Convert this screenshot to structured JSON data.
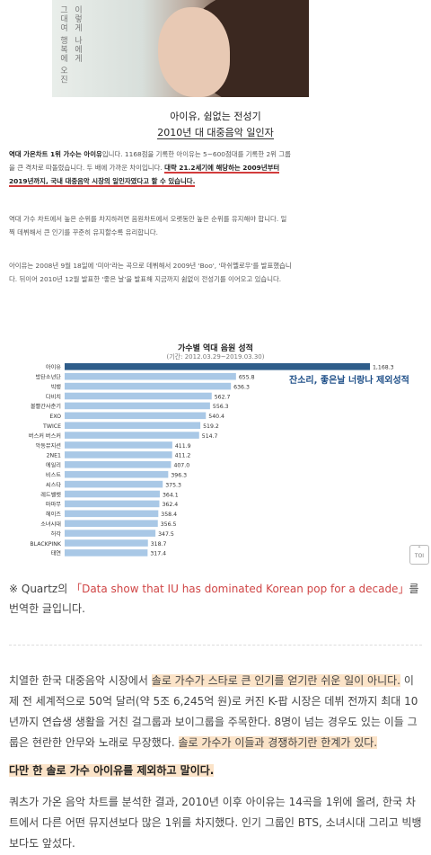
{
  "hero": {
    "vertical_text_1": "그대여 행복에 오진",
    "vertical_text_2": "이렇게 나에게"
  },
  "heading": {
    "line1": "아이유, 쉼없는 전성기",
    "line2": "2010년 대 대중음악 일인자"
  },
  "article1": {
    "p1_bold": "역대 가온차트 1위 가수는 아이유",
    "p1_rest": "입니다. 1168점을 기록한 아이유는 5~600점대를 기록한 2위 그룹을 큰 격차로 따돌렸습니다. 두 배에 가까운 차이입니다. ",
    "p1_hl": "대략 21.2세기에 해당하는 2009년부터 2019년까지, 국내 대중음악 시장의 일인자였다고 할 수 있습니다.",
    "p2": "역대 가수 차트에서 높은 순위를 차지하려면 음원차트에서 오랫동안 높은 순위를 유지해야 합니다. 일찍 데뷔해서 큰 인기를 꾸준히 유지할수록 유리합니다.",
    "p3": "아이유는 2008년 9월 18일에 '미아'라는 곡으로 데뷔해서 2009년 'Boo', '마쉬멜로우'를 발표했습니다. 뒤이어 2010년 12월 발표한 '좋은 날'을 발표해 지금까지 쉼없이 전성기를 이어오고 있습니다."
  },
  "chart_data": {
    "type": "bar",
    "orientation": "horizontal",
    "title": "가수별 역대 음원 성적",
    "subtitle": "(기간: 2012.03.29~2019.03.30)",
    "annotation": "잔소리, 좋은날 너랑나 제외성적",
    "xlim": [
      0,
      1168.3
    ],
    "colors": {
      "highlight": "#2f5d8a",
      "default": "#a9c8e6"
    },
    "categories": [
      "아이유",
      "방탄소년단",
      "빅뱅",
      "다비치",
      "볼빨간사춘기",
      "EXO",
      "TWICE",
      "버스커 버스커",
      "악동뮤지션",
      "2NE1",
      "에일리",
      "비스트",
      "씨스타",
      "레드벨벳",
      "마마무",
      "헤이즈",
      "소녀시대",
      "허각",
      "BLACKPINK",
      "태연"
    ],
    "values": [
      1168.3,
      655.8,
      636.3,
      562.7,
      556.3,
      540.4,
      519.2,
      514.7,
      411.9,
      411.2,
      407.0,
      396.3,
      375.3,
      364.1,
      362.4,
      358.4,
      356.5,
      347.5,
      318.7,
      317.4
    ],
    "value_labels": [
      "1,168.3",
      "655.8",
      "636.3",
      "562.7",
      "556.3",
      "540.4",
      "519.2",
      "514.7",
      "411.9",
      "411.2",
      "407.0",
      "396.3",
      "375.3",
      "364.1",
      "362.4",
      "358.4",
      "356.5",
      "347.5",
      "318.7",
      "317.4"
    ]
  },
  "toi_label": "TOI",
  "note": {
    "prefix": "※ Quartz의 ",
    "link": "「Data show that IU has dominated Korean pop for a decade」",
    "suffix": "를 번역한 글입니다."
  },
  "article2": {
    "p1_a": "치열한 한국 대중음악 시장에서 ",
    "p1_mark1": "솔로 가수가 스타로 큰 인기를 얻기란 쉬운 일이 아니다.",
    "p1_b": " 이제 전 세계적으로 50억 달러(약 5조 6,245억 원)로 커진 K-팝 시장은 데뷔 전까지 최대 10년까지 연습생 생활을 거친 걸그룹과 보이그룹을 주목한다. 8명이 넘는 경우도 있는 이들 그룹은 현란한 안무와 노래로 무장했다. ",
    "p1_mark2": "솔로 가수가 이들과 경쟁하기란 한계가 있다.",
    "p2": "다만 한 솔로 가수 아이유를 제외하고 말이다.",
    "p3": "쿼츠가 가온 음악 차트를 분석한 결과, 2010년 이후 아이유는 14곡을 1위에 올려, 한국 차트에서 다른 어떤 뮤지션보다 많은 1위를 차지했다. 인기 그룹인 BTS, 소녀시대 그리고 빅뱅보다도 앞섰다."
  }
}
